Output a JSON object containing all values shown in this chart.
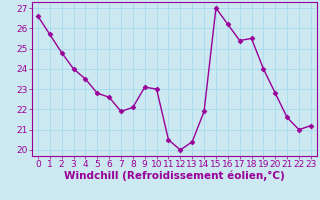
{
  "x": [
    0,
    1,
    2,
    3,
    4,
    5,
    6,
    7,
    8,
    9,
    10,
    11,
    12,
    13,
    14,
    15,
    16,
    17,
    18,
    19,
    20,
    21,
    22,
    23
  ],
  "y": [
    26.6,
    25.7,
    24.8,
    24.0,
    23.5,
    22.8,
    22.6,
    21.9,
    22.1,
    23.1,
    23.0,
    20.5,
    20.0,
    20.4,
    21.9,
    27.0,
    26.2,
    25.4,
    25.5,
    24.0,
    22.8,
    21.6,
    21.0,
    21.2
  ],
  "line_color": "#990099",
  "marker": "D",
  "marker_size": 2.5,
  "bg_color": "#cce8f0",
  "grid_color": "#aaddee",
  "xlabel": "Windchill (Refroidissement éolien,°C)",
  "ylim": [
    19.7,
    27.3
  ],
  "xlim": [
    -0.5,
    23.5
  ],
  "yticks": [
    20,
    21,
    22,
    23,
    24,
    25,
    26,
    27
  ],
  "xticks": [
    0,
    1,
    2,
    3,
    4,
    5,
    6,
    7,
    8,
    9,
    10,
    11,
    12,
    13,
    14,
    15,
    16,
    17,
    18,
    19,
    20,
    21,
    22,
    23
  ],
  "tick_color": "#990099",
  "label_color": "#990099",
  "label_fontsize": 6.5,
  "tick_fontsize": 6.5,
  "xlabel_fontsize": 7.5,
  "linewidth": 1.0
}
